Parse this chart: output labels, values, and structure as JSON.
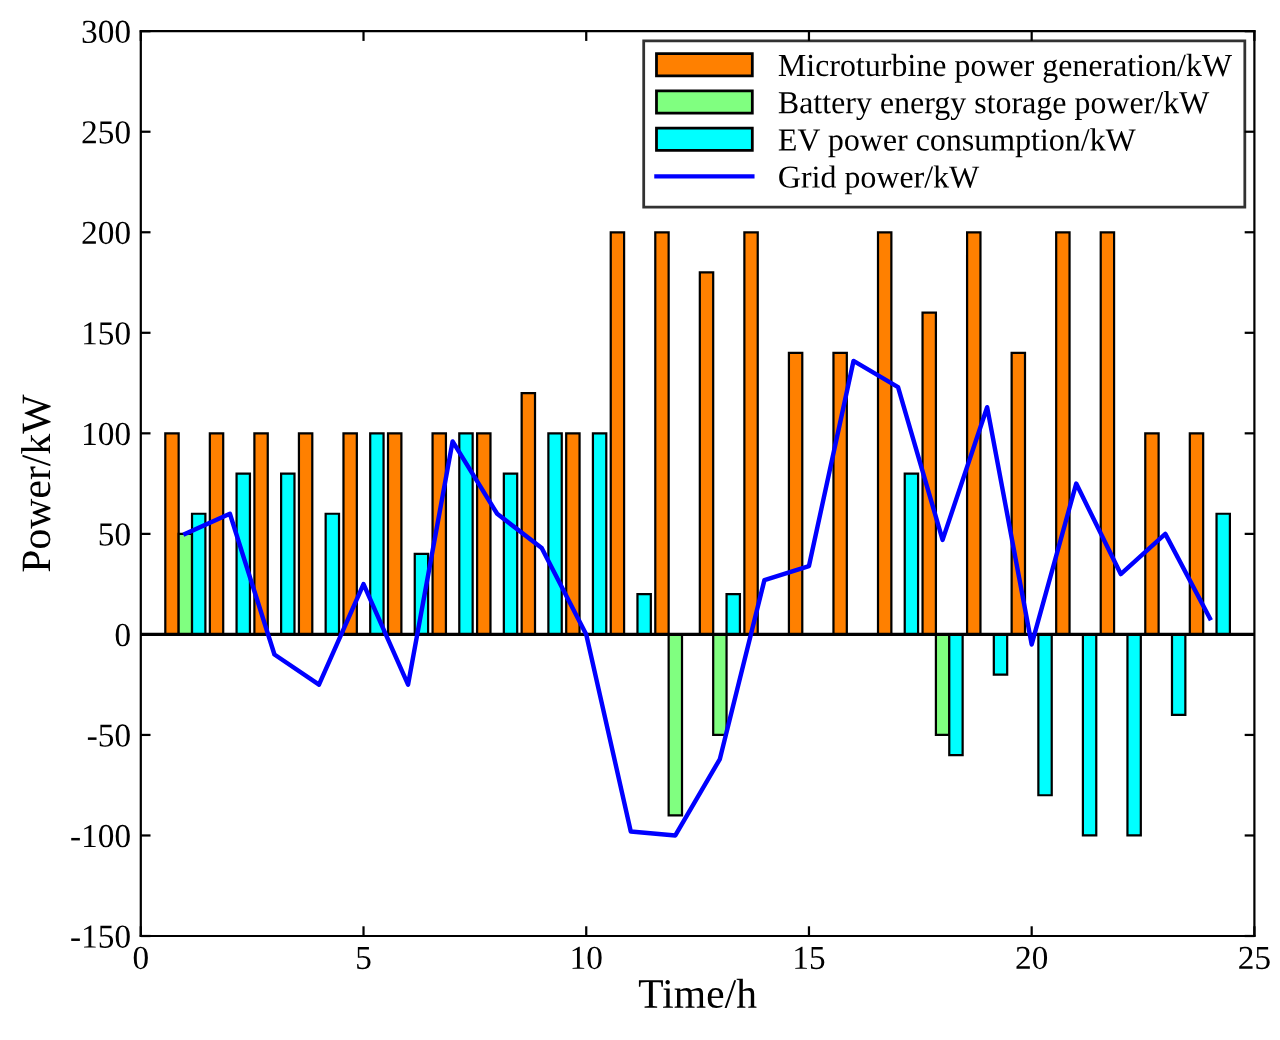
{
  "chart_data": {
    "type": "bar",
    "xlabel": "Time/h",
    "ylabel": "Power/kW",
    "x": [
      1,
      2,
      3,
      4,
      5,
      6,
      7,
      8,
      9,
      10,
      11,
      12,
      13,
      14,
      15,
      16,
      17,
      18,
      19,
      20,
      21,
      22,
      23,
      24
    ],
    "series": [
      {
        "name": "Microturbine power generation/kW",
        "color": "#ff8000",
        "values": [
          100,
          100,
          100,
          100,
          100,
          100,
          100,
          100,
          120,
          100,
          200,
          200,
          180,
          200,
          140,
          140,
          200,
          160,
          200,
          140,
          200,
          200,
          100,
          100
        ]
      },
      {
        "name": "Battery energy storage power/kW",
        "color": "#80ff80",
        "values": [
          50,
          null,
          null,
          null,
          null,
          null,
          null,
          null,
          null,
          null,
          null,
          -90,
          -50,
          null,
          null,
          null,
          null,
          -50,
          null,
          null,
          null,
          null,
          null,
          null
        ]
      },
      {
        "name": "EV power consumption/kW",
        "color": "#00ffff",
        "values": [
          60,
          80,
          80,
          60,
          100,
          40,
          100,
          80,
          100,
          100,
          20,
          null,
          20,
          null,
          null,
          null,
          80,
          -60,
          -20,
          -80,
          -100,
          -100,
          -40,
          60
        ]
      },
      {
        "name": "Grid power/kW",
        "type": "line",
        "color": "#0000ff",
        "values": [
          50,
          60,
          -10,
          -25,
          25,
          -25,
          96,
          60,
          43,
          0,
          -98,
          -100,
          -62,
          27,
          34,
          136,
          123,
          47,
          113,
          -5,
          75,
          30,
          50,
          8
        ]
      }
    ],
    "xlim": [
      0,
      25
    ],
    "xticks": [
      0,
      5,
      10,
      15,
      20,
      25
    ],
    "ylim": [
      -150,
      300
    ],
    "yticks": [
      -150,
      -100,
      -50,
      0,
      50,
      100,
      150,
      200,
      250,
      300
    ],
    "ref_lines": [
      {
        "axis": "y",
        "value": 0,
        "color": "#000000"
      }
    ],
    "legend": "top right",
    "grid": false,
    "marker": "none",
    "line_style": "solid"
  }
}
